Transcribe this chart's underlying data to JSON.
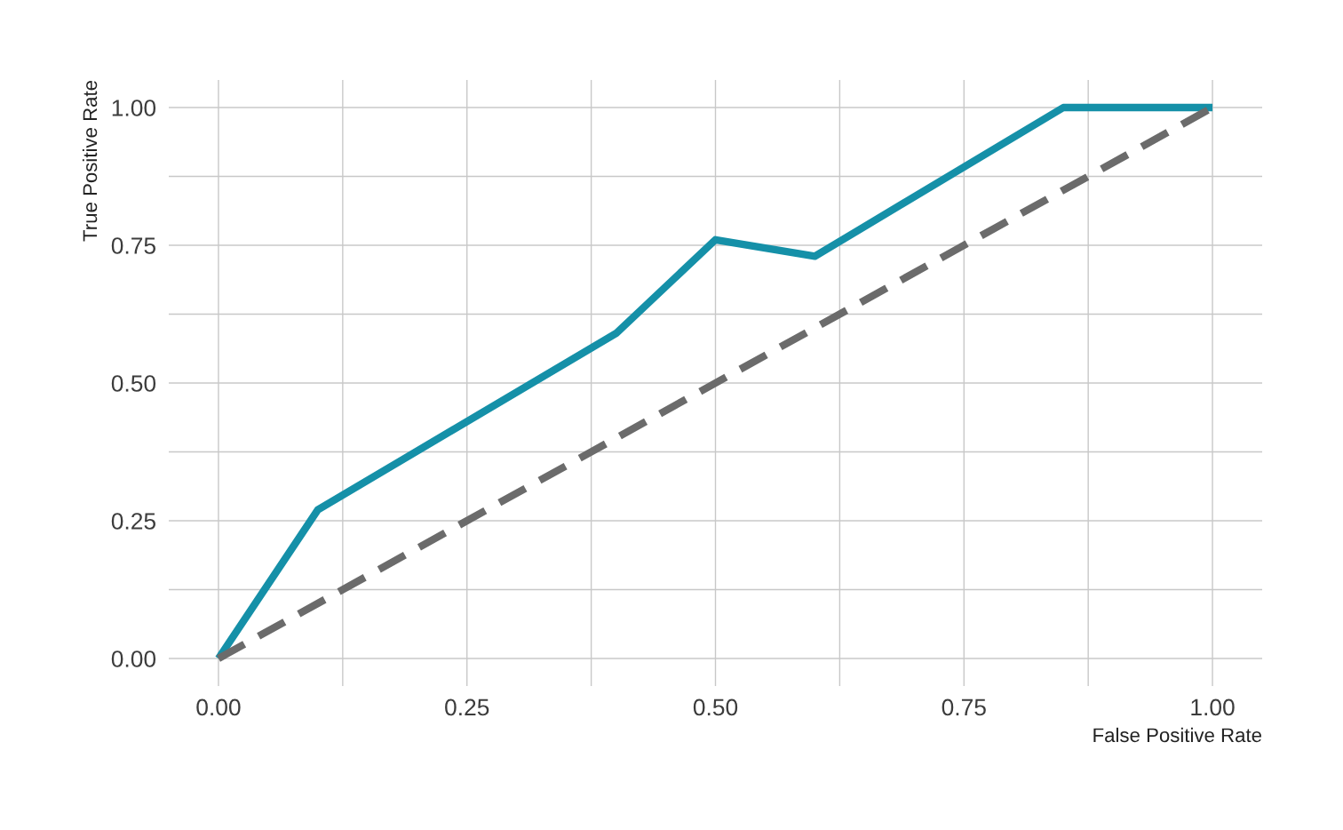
{
  "chart_data": {
    "type": "line",
    "xlabel": "False Positive Rate",
    "ylabel": "True Positive Rate",
    "series": [
      {
        "x": [
          0,
          0.1,
          0.4,
          0.5,
          0.6,
          0.85,
          1.0
        ],
        "values": [
          0,
          0.27,
          0.59,
          0.76,
          0.73,
          1.0,
          1.0
        ],
        "color": "#1590a8",
        "line_style": "solid"
      },
      {
        "x": [
          0,
          1.0
        ],
        "values": [
          0,
          1.0
        ],
        "color": "#6b6b6b",
        "line_style": "dashed"
      }
    ],
    "xlim": [
      -0.05,
      1.05
    ],
    "ylim": [
      -0.05,
      1.05
    ],
    "xticks": [
      {
        "value": 0,
        "label": "0.00"
      },
      {
        "value": 0.125,
        "label": null
      },
      {
        "value": 0.25,
        "label": "0.25"
      },
      {
        "value": 0.375,
        "label": null
      },
      {
        "value": 0.5,
        "label": "0.50"
      },
      {
        "value": 0.625,
        "label": null
      },
      {
        "value": 0.75,
        "label": "0.75"
      },
      {
        "value": 0.875,
        "label": null
      },
      {
        "value": 1,
        "label": "1.00"
      }
    ],
    "yticks": [
      {
        "value": 0,
        "label": "0.00"
      },
      {
        "value": 0.125,
        "label": null
      },
      {
        "value": 0.25,
        "label": "0.25"
      },
      {
        "value": 0.375,
        "label": null
      },
      {
        "value": 0.5,
        "label": "0.50"
      },
      {
        "value": 0.625,
        "label": null
      },
      {
        "value": 0.75,
        "label": "0.75"
      },
      {
        "value": 0.875,
        "label": null
      },
      {
        "value": 1,
        "label": "1.00"
      }
    ],
    "grid": true,
    "marker": "none"
  }
}
